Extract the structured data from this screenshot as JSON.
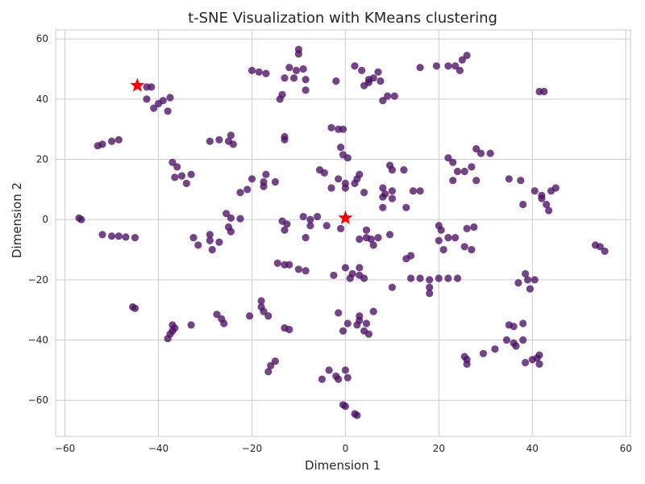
{
  "chart_data": {
    "type": "scatter",
    "title": "t-SNE Visualization with KMeans clustering",
    "xlabel": "Dimension 1",
    "ylabel": "Dimension 2",
    "xlim": [
      -62,
      61
    ],
    "ylim": [
      -72,
      63
    ],
    "xticks": [
      -60,
      -40,
      -20,
      0,
      20,
      40,
      60
    ],
    "yticks": [
      -60,
      -40,
      -20,
      0,
      20,
      40,
      60
    ],
    "grid": true,
    "legend": "none",
    "colors": {
      "points": "#4b1064",
      "centroids": "#ff0000",
      "grid": "#cccccc"
    },
    "series": [
      {
        "marker": "circle",
        "points": [
          [
            -42.5,
            44
          ],
          [
            -41.5,
            44
          ],
          [
            -42.5,
            40
          ],
          [
            -41,
            37
          ],
          [
            -40,
            38.5
          ],
          [
            -39,
            39.5
          ],
          [
            -37.5,
            40.5
          ],
          [
            -38,
            36
          ],
          [
            -53,
            24.5
          ],
          [
            -52,
            25
          ],
          [
            -50,
            26
          ],
          [
            -48.5,
            26.5
          ],
          [
            -37,
            19
          ],
          [
            -36,
            17.5
          ],
          [
            -36.5,
            14
          ],
          [
            -35,
            14.5
          ],
          [
            -33,
            15
          ],
          [
            -34,
            12
          ],
          [
            -29,
            26
          ],
          [
            -27,
            26.5
          ],
          [
            -25,
            26
          ],
          [
            -24.5,
            28
          ],
          [
            -24,
            25
          ],
          [
            -22.5,
            9
          ],
          [
            -21,
            10
          ],
          [
            -20,
            13.5
          ],
          [
            -17,
            15
          ],
          [
            -17.5,
            12.5
          ],
          [
            -17.5,
            11
          ],
          [
            -15,
            12.5
          ],
          [
            -57,
            0.5
          ],
          [
            -56.5,
            0
          ],
          [
            -52,
            -5
          ],
          [
            -50,
            -5.5
          ],
          [
            -48.5,
            -5.5
          ],
          [
            -47,
            -5.8
          ],
          [
            -45,
            -6
          ],
          [
            -32.5,
            -6
          ],
          [
            -31.5,
            -8.5
          ],
          [
            -29,
            -5
          ],
          [
            -29,
            -7
          ],
          [
            -28.5,
            -10
          ],
          [
            -27,
            -7.5
          ],
          [
            -25.5,
            2
          ],
          [
            -24.5,
            0.5
          ],
          [
            -22.5,
            0.3
          ],
          [
            -25,
            -2.5
          ],
          [
            -24.5,
            -4
          ],
          [
            -13.5,
            -0.5
          ],
          [
            -12.5,
            -1.5
          ],
          [
            -13,
            -3.5
          ],
          [
            -9,
            1
          ],
          [
            -7.5,
            0
          ],
          [
            -6,
            1
          ],
          [
            -7.5,
            -2
          ],
          [
            -8.5,
            -6
          ],
          [
            -14.5,
            -14.5
          ],
          [
            -13,
            -15
          ],
          [
            -12,
            -15
          ],
          [
            -10,
            -16.5
          ],
          [
            -8.5,
            -17
          ],
          [
            -45.5,
            -29
          ],
          [
            -45,
            -29.5
          ],
          [
            -37,
            -35
          ],
          [
            -36.5,
            -36
          ],
          [
            -37,
            -37
          ],
          [
            -37.5,
            -38
          ],
          [
            -38,
            -39.5
          ],
          [
            -33,
            -35
          ],
          [
            -27.5,
            -31.5
          ],
          [
            -26.5,
            -33
          ],
          [
            -26,
            -34.5
          ],
          [
            -20.5,
            -32
          ],
          [
            -18,
            -27
          ],
          [
            -18,
            -29
          ],
          [
            -17.5,
            -30.5
          ],
          [
            -16.5,
            -32
          ],
          [
            -13,
            -36
          ],
          [
            -12,
            -36.5
          ],
          [
            -15,
            -47
          ],
          [
            -16,
            -48.5
          ],
          [
            -16.5,
            -50.5
          ],
          [
            -20,
            49.5
          ],
          [
            -18.5,
            49
          ],
          [
            -17,
            48.5
          ],
          [
            -13,
            47
          ],
          [
            -12,
            50.5
          ],
          [
            -10.5,
            49.5
          ],
          [
            -11,
            47
          ],
          [
            -9,
            50
          ],
          [
            -10,
            55
          ],
          [
            -10,
            56.5
          ],
          [
            -8.5,
            46.5
          ],
          [
            -8.5,
            43
          ],
          [
            -14,
            40
          ],
          [
            -13.5,
            41.5
          ],
          [
            -2,
            46
          ],
          [
            -13,
            27.5
          ],
          [
            -13,
            26.5
          ],
          [
            -3,
            30.5
          ],
          [
            -1.5,
            30
          ],
          [
            -0.5,
            30
          ],
          [
            -1,
            24
          ],
          [
            -0.5,
            21.5
          ],
          [
            0.5,
            20.5
          ],
          [
            -5.5,
            16.5
          ],
          [
            -4.5,
            15.5
          ],
          [
            -1.5,
            13.5
          ],
          [
            0,
            12
          ],
          [
            0,
            10.5
          ],
          [
            -3,
            10.5
          ],
          [
            2,
            12
          ],
          [
            2.5,
            13.5
          ],
          [
            3,
            15
          ],
          [
            4,
            9
          ],
          [
            -4,
            -2
          ],
          [
            -1,
            -3
          ],
          [
            3,
            -6.5
          ],
          [
            4.5,
            -3.5
          ],
          [
            4.5,
            -6
          ],
          [
            5.5,
            -6.5
          ],
          [
            6,
            -8.5
          ],
          [
            7,
            -6
          ],
          [
            9.5,
            -5
          ],
          [
            0,
            -16
          ],
          [
            1.5,
            -18
          ],
          [
            1,
            -19.5
          ],
          [
            3,
            -18.5
          ],
          [
            3,
            -16
          ],
          [
            4,
            -19.5
          ],
          [
            -2.5,
            -18.5
          ],
          [
            -1.5,
            -31
          ],
          [
            3,
            -32
          ],
          [
            3,
            -33.5
          ],
          [
            2.5,
            -35
          ],
          [
            4.5,
            -34.5
          ],
          [
            6,
            -30.5
          ],
          [
            4,
            -37
          ],
          [
            5,
            -38
          ],
          [
            -0.5,
            -37
          ],
          [
            0.5,
            -34.5
          ],
          [
            -3.5,
            -50
          ],
          [
            -5,
            -53
          ],
          [
            -2,
            -52
          ],
          [
            -1.5,
            -53
          ],
          [
            0,
            -50
          ],
          [
            0.5,
            -52.5
          ],
          [
            -0.5,
            -61.5
          ],
          [
            0,
            -62
          ],
          [
            2,
            -64.5
          ],
          [
            2.5,
            -65
          ],
          [
            2,
            51
          ],
          [
            3.5,
            49.5
          ],
          [
            5,
            46.5
          ],
          [
            6,
            47
          ],
          [
            7,
            49
          ],
          [
            5,
            45.5
          ],
          [
            4,
            44.5
          ],
          [
            7.5,
            46
          ],
          [
            8,
            39.5
          ],
          [
            9,
            41
          ],
          [
            10.5,
            41
          ],
          [
            8,
            10.5
          ],
          [
            9.5,
            18
          ],
          [
            10,
            16.5
          ],
          [
            12.5,
            16.5
          ],
          [
            8.5,
            8.5
          ],
          [
            10,
            9.5
          ],
          [
            10,
            7
          ],
          [
            8,
            7.5
          ],
          [
            8,
            4
          ],
          [
            13,
            4
          ],
          [
            14.5,
            9.5
          ],
          [
            16,
            9.5
          ],
          [
            10,
            -22.5
          ],
          [
            13,
            -13
          ],
          [
            14,
            -12
          ],
          [
            14,
            -19.5
          ],
          [
            16,
            -19.5
          ],
          [
            18,
            -20
          ],
          [
            18,
            -22.5
          ],
          [
            18,
            -24.5
          ],
          [
            20,
            -19.5
          ],
          [
            22,
            -19.5
          ],
          [
            24,
            -19.5
          ],
          [
            20,
            -2
          ],
          [
            20.5,
            -3.5
          ],
          [
            22,
            -6
          ],
          [
            23.5,
            -6
          ],
          [
            20,
            -7
          ],
          [
            21,
            -10
          ],
          [
            26,
            -3
          ],
          [
            27.5,
            -2.5
          ],
          [
            25.5,
            -9
          ],
          [
            27,
            -10
          ],
          [
            16,
            50.5
          ],
          [
            19.5,
            51
          ],
          [
            22,
            51
          ],
          [
            23.5,
            51
          ],
          [
            24.5,
            49.5
          ],
          [
            25,
            53
          ],
          [
            26,
            54.5
          ],
          [
            22,
            20.5
          ],
          [
            23,
            19
          ],
          [
            24,
            16
          ],
          [
            25.5,
            16
          ],
          [
            27,
            17.5
          ],
          [
            28,
            23.5
          ],
          [
            29,
            22
          ],
          [
            31,
            22
          ],
          [
            23,
            13
          ],
          [
            28,
            13
          ],
          [
            35,
            13.5
          ],
          [
            37.5,
            13
          ],
          [
            38,
            5
          ],
          [
            40.5,
            9.5
          ],
          [
            42,
            8
          ],
          [
            42,
            7
          ],
          [
            43,
            5
          ],
          [
            43.5,
            3
          ],
          [
            44,
            9.5
          ],
          [
            45,
            10.5
          ],
          [
            41.5,
            42.5
          ],
          [
            42.5,
            42.5
          ],
          [
            53.5,
            -8.5
          ],
          [
            54.5,
            -9
          ],
          [
            55.5,
            -10.5
          ],
          [
            37,
            -21
          ],
          [
            38.5,
            -18
          ],
          [
            39,
            -20
          ],
          [
            39.5,
            -23
          ],
          [
            40.5,
            -20
          ],
          [
            25.5,
            -45.5
          ],
          [
            26,
            -46.5
          ],
          [
            26,
            -48
          ],
          [
            29.5,
            -44.5
          ],
          [
            32,
            -43
          ],
          [
            34.5,
            -40
          ],
          [
            35,
            -35
          ],
          [
            36,
            -35.5
          ],
          [
            38,
            -34.5
          ],
          [
            38,
            -40
          ],
          [
            36,
            -41
          ],
          [
            36.5,
            -42
          ],
          [
            38.5,
            -47.5
          ],
          [
            40,
            -46.5
          ],
          [
            41.5,
            -45
          ],
          [
            41.5,
            -48
          ],
          [
            41,
            -46
          ]
        ]
      },
      {
        "marker": "star",
        "points": [
          [
            -44.5,
            44.5
          ],
          [
            0,
            0.5
          ]
        ]
      }
    ]
  }
}
